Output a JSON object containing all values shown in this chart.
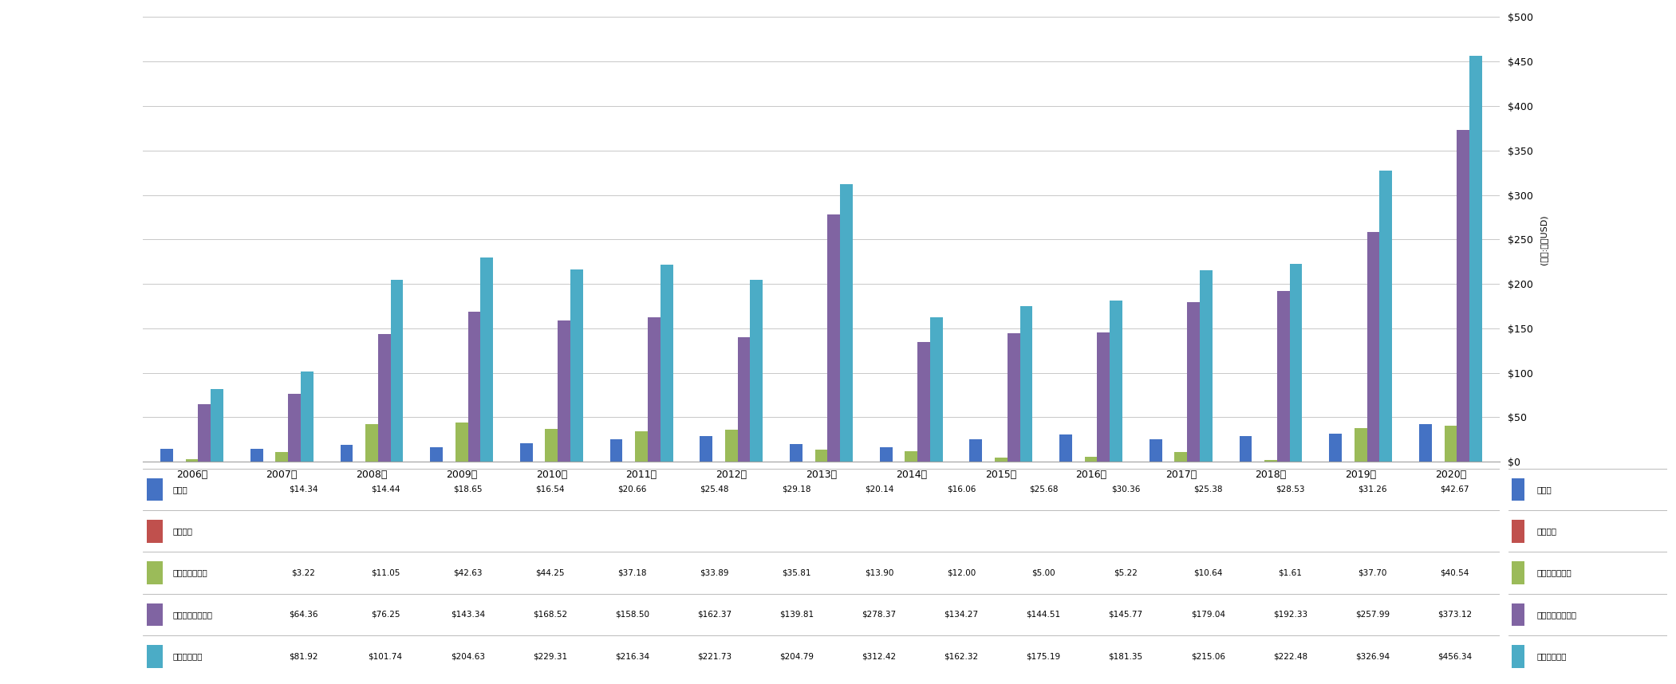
{
  "years": [
    "2006年",
    "2007年",
    "2008年",
    "2009年",
    "2010年",
    "2011年",
    "2012年",
    "2013年",
    "2014年",
    "2015年",
    "2016年",
    "2017年",
    "2018年",
    "2019年",
    "2020年"
  ],
  "series": [
    {
      "name": "買掛金",
      "values": [
        14.34,
        14.44,
        18.65,
        16.54,
        20.66,
        25.48,
        29.18,
        20.14,
        16.06,
        25.68,
        30.36,
        25.38,
        28.53,
        31.26,
        42.67
      ],
      "color": "#4472C4"
    },
    {
      "name": "繰延収益",
      "values": [
        0,
        0,
        0,
        0,
        0,
        0,
        0,
        0,
        0,
        0,
        0,
        0,
        0,
        0,
        0
      ],
      "color": "#C0504D"
    },
    {
      "name": "短期有利子負債",
      "values": [
        3.22,
        11.05,
        42.63,
        44.25,
        37.18,
        33.89,
        35.81,
        13.9,
        12.0,
        5.0,
        5.22,
        10.64,
        1.61,
        37.7,
        40.54
      ],
      "color": "#9BBB59"
    },
    {
      "name": "その他の流動負債",
      "values": [
        64.36,
        76.25,
        143.34,
        168.52,
        158.5,
        162.37,
        139.81,
        278.37,
        134.27,
        144.51,
        145.77,
        179.04,
        192.33,
        257.99,
        373.12
      ],
      "color": "#8064A2"
    },
    {
      "name": "流動負債合計",
      "values": [
        81.92,
        101.74,
        204.63,
        229.31,
        216.34,
        221.73,
        204.79,
        312.42,
        162.32,
        175.19,
        181.35,
        215.06,
        222.48,
        326.94,
        456.34
      ],
      "color": "#4BACC6"
    }
  ],
  "table_rows": [
    {
      "label": "買掛金",
      "values": [
        "$14.34",
        "$14.44",
        "$18.65",
        "$16.54",
        "$20.66",
        "$25.48",
        "$29.18",
        "$20.14",
        "$16.06",
        "$25.68",
        "$30.36",
        "$25.38",
        "$28.53",
        "$31.26",
        "$42.67"
      ],
      "color": "#4472C4"
    },
    {
      "label": "繰延収益",
      "values": [
        "",
        "",
        "",
        "",
        "",
        "",
        "",
        "",
        "",
        "",
        "",
        "",
        "",
        "",
        ""
      ],
      "color": "#C0504D"
    },
    {
      "label": "短期有利子負債",
      "values": [
        "$3.22",
        "$11.05",
        "$42.63",
        "$44.25",
        "$37.18",
        "$33.89",
        "$35.81",
        "$13.90",
        "$12.00",
        "$5.00",
        "$5.22",
        "$10.64",
        "$1.61",
        "$37.70",
        "$40.54"
      ],
      "color": "#9BBB59"
    },
    {
      "label": "その他の流動負債",
      "values": [
        "$64.36",
        "$76.25",
        "$143.34",
        "$168.52",
        "$158.50",
        "$162.37",
        "$139.81",
        "$278.37",
        "$134.27",
        "$144.51",
        "$145.77",
        "$179.04",
        "$192.33",
        "$257.99",
        "$373.12"
      ],
      "color": "#8064A2"
    },
    {
      "label": "流動負債合計",
      "values": [
        "$81.92",
        "$101.74",
        "$204.63",
        "$229.31",
        "$216.34",
        "$221.73",
        "$204.79",
        "$312.42",
        "$162.32",
        "$175.19",
        "$181.35",
        "$215.06",
        "$222.48",
        "$326.94",
        "$456.34"
      ],
      "color": "#4BACC6"
    }
  ],
  "ylabel_right": "(単位:百万USD)",
  "ylim": [
    0,
    500
  ],
  "ytick_interval": 50,
  "background_color": "#FFFFFF",
  "grid_color": "#C8C8C8",
  "bar_width": 0.14
}
